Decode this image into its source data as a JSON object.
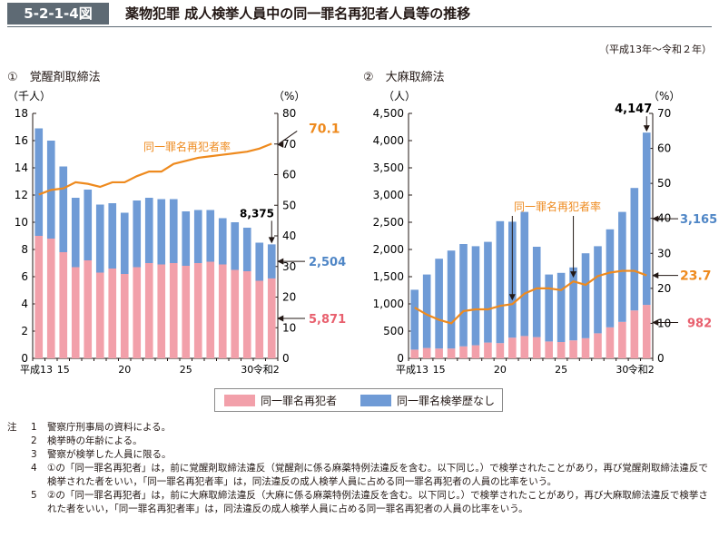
{
  "figure": {
    "code": "5-2-1-4図",
    "title": "薬物犯罪 成人検挙人員中の同一罪名再犯者人員等の推移",
    "period": "（平成13年～令和２年）"
  },
  "legend": {
    "repeat": "同一罪名再犯者",
    "no_prior": "同一罪名検挙歴なし"
  },
  "colors": {
    "repeat": "#f2a0aa",
    "no_prior": "#6f9bd6",
    "rate_line": "#ee8a1e"
  },
  "chart_data": [
    {
      "type": "bar",
      "panel_title": "①　覚醒剤取締法",
      "left_unit": "（千人）",
      "right_unit": "（%）",
      "ylim": [
        0,
        18
      ],
      "y_ticks": [
        "0",
        "2",
        "4",
        "6",
        "8",
        "10",
        "12",
        "14",
        "16",
        "18"
      ],
      "y2lim": [
        0,
        80
      ],
      "y2_ticks": [
        "0",
        "10",
        "20",
        "30",
        "40",
        "50",
        "60",
        "70",
        "80"
      ],
      "x_tick_labels": [
        {
          "i": 0,
          "t": "平成13"
        },
        {
          "i": 2,
          "t": "15"
        },
        {
          "i": 7,
          "t": "20"
        },
        {
          "i": 12,
          "t": "25"
        },
        {
          "i": 17,
          "t": "30"
        },
        {
          "i": 19,
          "t": "令和2"
        }
      ],
      "series": [
        {
          "name": "同一罪名再犯者",
          "values": [
            9.0,
            8.8,
            7.8,
            6.7,
            7.2,
            6.3,
            6.6,
            6.2,
            6.7,
            7.0,
            6.9,
            7.0,
            6.8,
            7.0,
            7.1,
            6.9,
            6.5,
            6.4,
            5.7,
            5.871
          ]
        },
        {
          "name": "同一罪名検挙歴なし",
          "values": [
            7.9,
            7.2,
            6.3,
            5.1,
            5.2,
            5.0,
            4.8,
            4.5,
            4.9,
            4.8,
            4.8,
            4.7,
            4.0,
            3.9,
            3.8,
            3.4,
            3.5,
            3.2,
            2.8,
            2.504
          ]
        },
        {
          "name": "同一罪名再犯者率",
          "values": [
            53.5,
            55.0,
            55.5,
            57.5,
            57.0,
            56.0,
            57.5,
            57.5,
            59.5,
            61.0,
            61.0,
            63.5,
            64.5,
            65.5,
            66.0,
            66.5,
            67.0,
            67.5,
            68.5,
            70.1
          ]
        }
      ],
      "annotations": {
        "rate_label": "同一罪名再犯者率",
        "total": "8,375",
        "rate": "70.1",
        "no_prior": "2,504",
        "repeat": "5,871"
      }
    },
    {
      "type": "bar",
      "panel_title": "②　大麻取締法",
      "left_unit": "（人）",
      "right_unit": "（%）",
      "ylim": [
        0,
        4500
      ],
      "y_ticks": [
        "0",
        "500",
        "1,000",
        "1,500",
        "2,000",
        "2,500",
        "3,000",
        "3,500",
        "4,000",
        "4,500"
      ],
      "y2lim": [
        0,
        70
      ],
      "y2_ticks": [
        "0",
        "10",
        "20",
        "30",
        "40",
        "50",
        "60",
        "70"
      ],
      "x_tick_labels": [
        {
          "i": 0,
          "t": "平成13"
        },
        {
          "i": 2,
          "t": "15"
        },
        {
          "i": 7,
          "t": "20"
        },
        {
          "i": 12,
          "t": "25"
        },
        {
          "i": 17,
          "t": "30"
        },
        {
          "i": 19,
          "t": "令和2"
        }
      ],
      "series": [
        {
          "name": "同一罪名再犯者",
          "values": [
            160,
            190,
            180,
            180,
            220,
            240,
            290,
            280,
            380,
            410,
            390,
            310,
            300,
            330,
            370,
            460,
            570,
            670,
            880,
            982
          ]
        },
        {
          "name": "同一罪名検挙歴なし",
          "values": [
            1100,
            1350,
            1650,
            1800,
            1880,
            1820,
            1850,
            2240,
            2130,
            2280,
            1660,
            1230,
            1270,
            1340,
            1560,
            1600,
            1800,
            2020,
            2250,
            3165
          ]
        },
        {
          "name": "同一罪名再犯者率",
          "values": [
            14.5,
            12.5,
            11.0,
            10.0,
            13.5,
            14.0,
            14.0,
            15.0,
            15.5,
            18.5,
            20.0,
            20.0,
            19.5,
            22.0,
            21.0,
            23.5,
            24.5,
            25.0,
            25.0,
            23.7
          ]
        }
      ],
      "annotations": {
        "rate_label": "同一罪名再犯者率",
        "total": "4,147",
        "no_prior": "3,165",
        "rate": "23.7",
        "repeat": "982"
      }
    }
  ],
  "notes": [
    {
      "mark": "注",
      "num": "1",
      "text": "警察庁刑事局の資料による。"
    },
    {
      "mark": "",
      "num": "2",
      "text": "検挙時の年齢による。"
    },
    {
      "mark": "",
      "num": "3",
      "text": "警察が検挙した人員に限る。"
    },
    {
      "mark": "",
      "num": "4",
      "text": "①の「同一罪名再犯者」は，前に覚醒剤取締法違反（覚醒剤に係る麻薬特例法違反を含む。以下同じ。）で検挙されたことがあり，再び覚醒剤取締法違反で検挙された者をいい，「同一罪名再犯者率」は，同法違反の成人検挙人員に占める同一罪名再犯者の人員の比率をいう。"
    },
    {
      "mark": "",
      "num": "5",
      "text": "②の「同一罪名再犯者」は，前に大麻取締法違反（大麻に係る麻薬特例法違反を含む。以下同じ。）で検挙されたことがあり，再び大麻取締法違反で検挙された者をいい，「同一罪名再犯者率」は，同法違反の成人検挙人員に占める同一罪名再犯者の人員の比率をいう。"
    }
  ]
}
